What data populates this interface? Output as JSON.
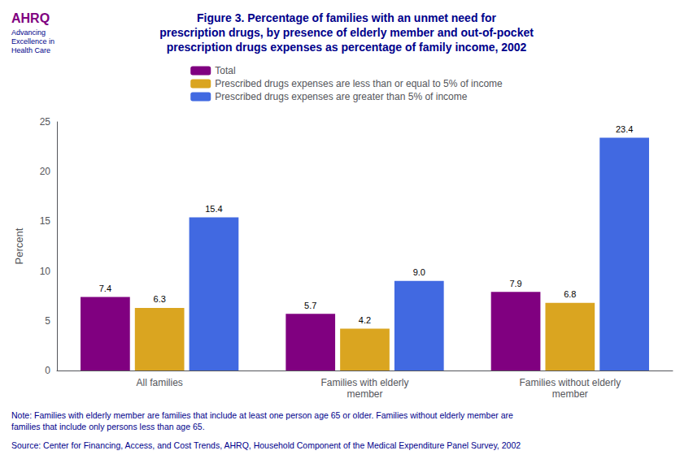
{
  "chart_data": {
    "type": "bar",
    "title": "Figure 3. Percentage of families with an unmet need for\nprescription drugs, by presence of elderly member and out-of-pocket\nprescription drugs expenses as percentage of family income, 2002",
    "categories": [
      "All families",
      "Families with elderly\nmember",
      "Families without elderly\nmember"
    ],
    "series": [
      {
        "name": "Total",
        "color": "#800080",
        "values": [
          7.4,
          5.7,
          7.9
        ]
      },
      {
        "name": "Prescribed drugs expenses are less than or equal to 5% of income",
        "color": "#DAA520",
        "values": [
          6.3,
          4.2,
          6.8
        ]
      },
      {
        "name": "Prescribed drugs expenses are greater than 5% of income",
        "color": "#4169E1",
        "values": [
          15.4,
          9.0,
          23.4
        ],
        "value_labels": [
          "15.4",
          "9.0",
          "23.4"
        ]
      }
    ],
    "ylabel": "Percent",
    "ylim": [
      0,
      25
    ],
    "yticks": [
      0,
      5,
      10,
      15,
      20,
      25
    ],
    "grid": false,
    "legend": "top",
    "data_labels": true,
    "annotations": [
      "AHRQ",
      "Advancing\nExcellence in\nHealth Care",
      "Note: Families with elderly member are families that include at least one person age 65 or older. Families without elderly member are\nfamilies that include only persons less than age 65.",
      "Source: Center for Financing, Access, and Cost Trends, AHRQ, Household Component of the Medical Expenditure Panel Survey, 2002"
    ]
  }
}
